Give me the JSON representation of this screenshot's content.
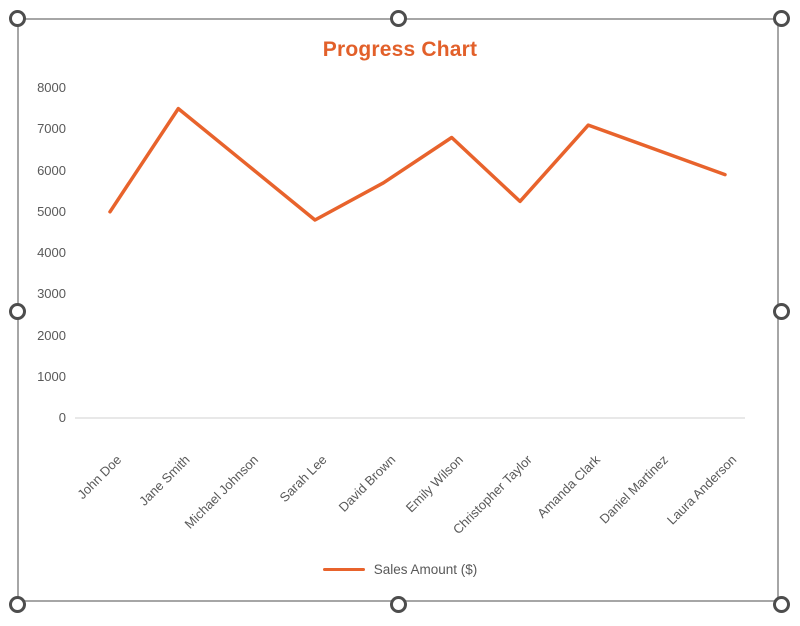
{
  "chart_data": {
    "type": "line",
    "title": "Progress Chart",
    "categories": [
      "John Doe",
      "Jane Smith",
      "Michael Johnson",
      "Sarah Lee",
      "David Brown",
      "Emily Wilson",
      "Christopher Taylor",
      "Amanda Clark",
      "Daniel Martinez",
      "Laura Anderson"
    ],
    "series": [
      {
        "name": "Sales Amount ($)",
        "values": [
          5000,
          7500,
          6150,
          4800,
          5700,
          6800,
          5250,
          7100,
          6500,
          5900
        ]
      }
    ],
    "xlabel": "",
    "ylabel": "",
    "ylim": [
      0,
      8000
    ],
    "yticks": [
      0,
      1000,
      2000,
      3000,
      4000,
      5000,
      6000,
      7000,
      8000
    ],
    "grid": false,
    "legend_position": "bottom",
    "colors": {
      "series": "#e8632c",
      "title": "#e2602a",
      "axis_text": "#595959",
      "baseline": "#d9d9d9",
      "selection_border": "#a6a6a6",
      "handle_ring": "#4d4d4d"
    }
  },
  "selection_frame": {
    "handle_icon": "circle-resize-handle",
    "handles": [
      "top-left",
      "top-center",
      "top-right",
      "middle-left",
      "middle-right",
      "bottom-left",
      "bottom-center",
      "bottom-right"
    ]
  }
}
